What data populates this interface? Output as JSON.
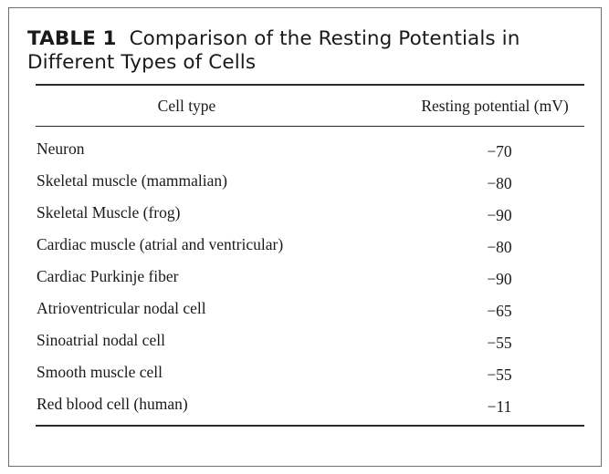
{
  "table": {
    "label": "TABLE 1",
    "caption_line1": "Comparison of the Resting Potentials in",
    "caption_line2": "Different Types of Cells",
    "headers": {
      "cell_type": "Cell type",
      "resting_potential": "Resting potential (mV)"
    },
    "rows": [
      {
        "cell_type": "Neuron",
        "value": "−70"
      },
      {
        "cell_type": "Skeletal muscle (mammalian)",
        "value": "−80"
      },
      {
        "cell_type": "Skeletal Muscle (frog)",
        "value": "−90"
      },
      {
        "cell_type": "Cardiac muscle (atrial and ventricular)",
        "value": "−80"
      },
      {
        "cell_type": "Cardiac Purkinje fiber",
        "value": "−90"
      },
      {
        "cell_type": "Atrioventricular nodal cell",
        "value": "−65"
      },
      {
        "cell_type": "Sinoatrial nodal cell",
        "value": "−55"
      },
      {
        "cell_type": "Smooth muscle cell",
        "value": "−55"
      },
      {
        "cell_type": "Red blood cell (human)",
        "value": "−11"
      }
    ]
  }
}
